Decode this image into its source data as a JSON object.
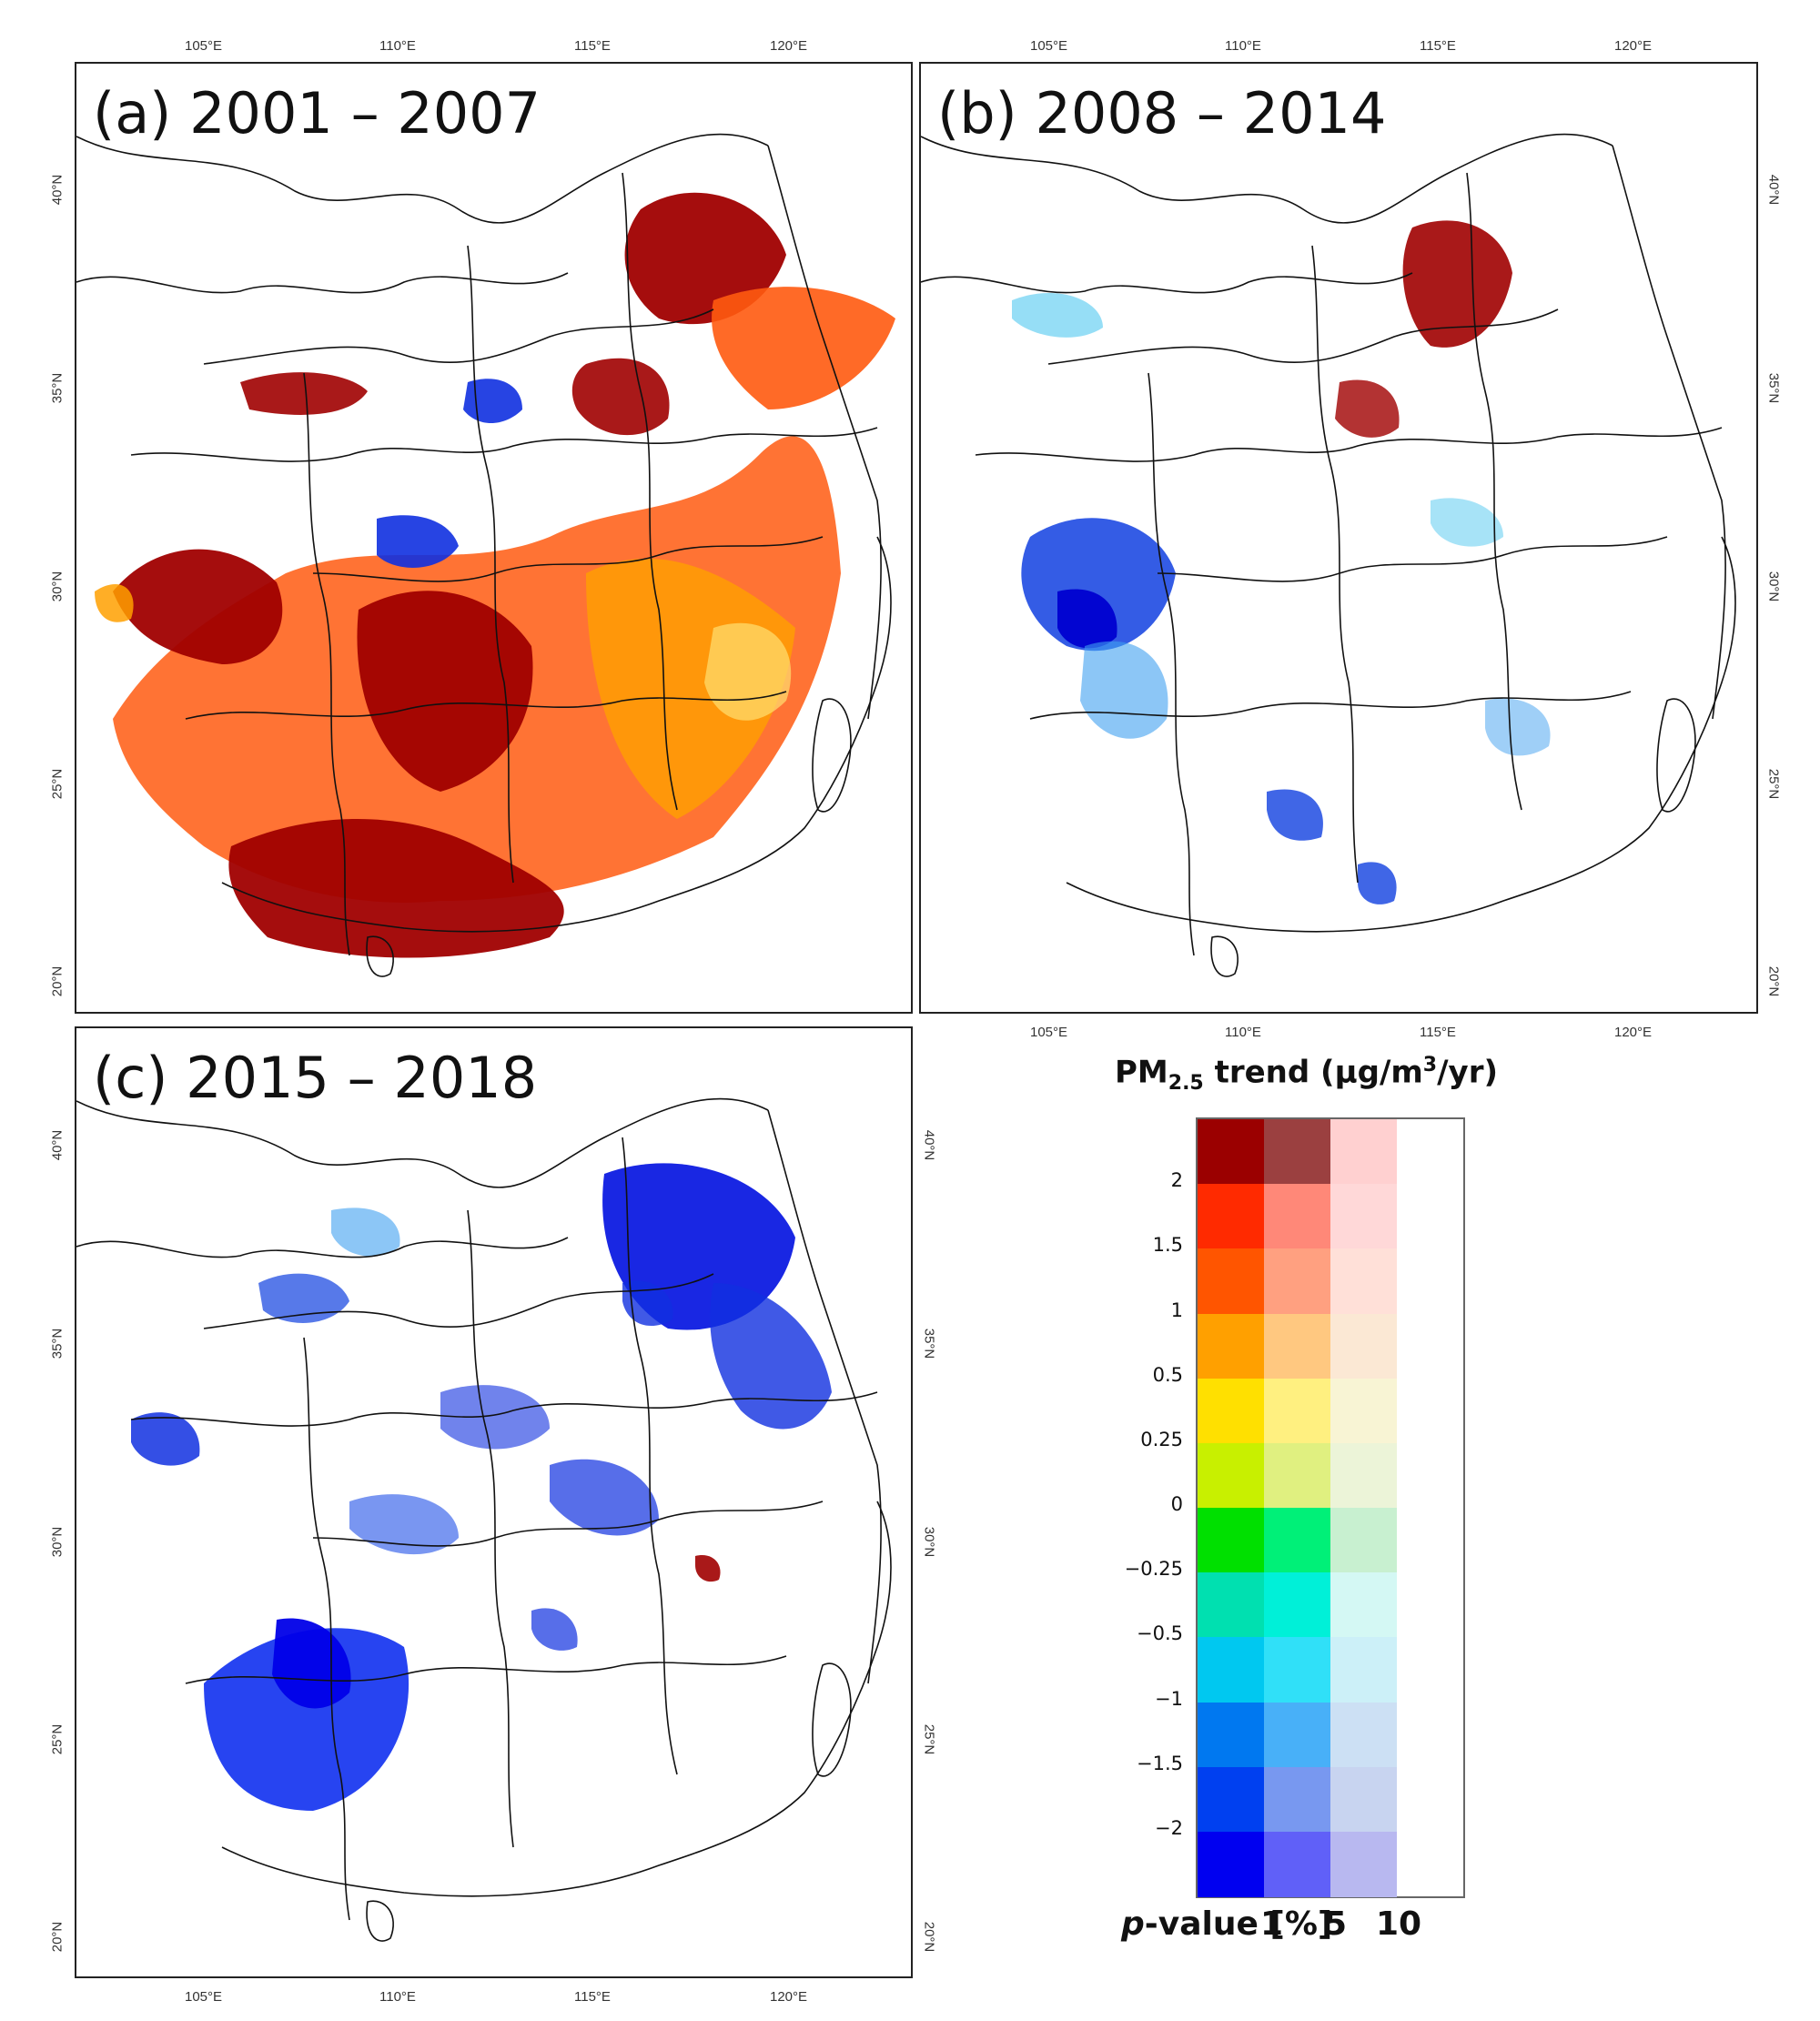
{
  "panels": [
    {
      "id": "a",
      "title": "(a) 2001 – 2007",
      "theme": "increase"
    },
    {
      "id": "b",
      "title": "(b) 2008 – 2014",
      "theme": "mixed"
    },
    {
      "id": "c",
      "title": "(c) 2015 – 2018",
      "theme": "decrease"
    }
  ],
  "axes": {
    "lon_labels": [
      "105°E",
      "110°E",
      "115°E",
      "120°E"
    ],
    "lat_labels": [
      "40°N",
      "35°N",
      "30°N",
      "25°N",
      "20°N"
    ]
  },
  "legend": {
    "title_main": "PM",
    "title_sub": "2.5",
    "title_rest": " trend (μg/m",
    "title_sup": "3",
    "title_end": "/yr)",
    "boundaries": [
      "2",
      "1.5",
      "1",
      "0.5",
      "0.25",
      "0",
      "−0.25",
      "−0.5",
      "−1",
      "−1.5",
      "−2"
    ],
    "colors_p1": [
      "#9b0000",
      "#ff2a00",
      "#ff5500",
      "#ffa000",
      "#ffe000",
      "#c8f000",
      "#00e000",
      "#00e0b0",
      "#00c8f0",
      "#0078f0",
      "#0040f0",
      "#0000f0"
    ],
    "colors_p5": [
      "#9b4040",
      "#ff8878",
      "#ffa080",
      "#ffc880",
      "#fff080",
      "#e0f080",
      "#00f078",
      "#00f0d8",
      "#30e0f8",
      "#48b0f8",
      "#7898f0",
      "#6060f8"
    ],
    "colors_p10": [
      "#ffd0d0",
      "#ffd8d8",
      "#ffe0d8",
      "#fbe8d4",
      "#f8f4d4",
      "#ecf4d8",
      "#c8f0d0",
      "#d4f8f4",
      "#ccf0f8",
      "#cce0f4",
      "#c8d4f0",
      "#b8b8f0"
    ],
    "pvalue_label": "p-value [%]",
    "pvalue_label_italic": "p",
    "pvalue_label_rest": "-value [%]",
    "pvalues": [
      "1",
      "5",
      "10"
    ]
  }
}
